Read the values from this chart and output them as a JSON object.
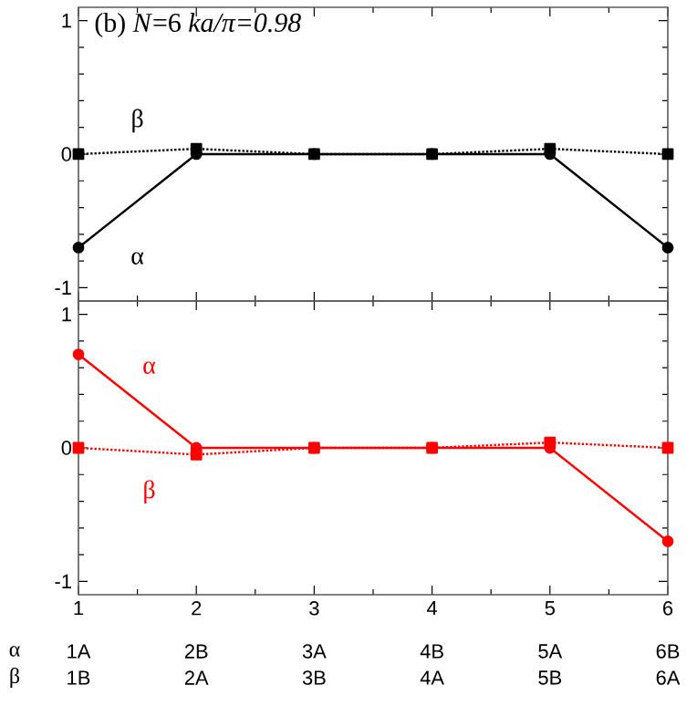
{
  "chart_data": [
    {
      "type": "line",
      "title": "(b) *N*=6    *ka/π=0.98*",
      "x": [
        1,
        2,
        3,
        4,
        5,
        6
      ],
      "xlim": [
        1,
        6
      ],
      "xticks": [
        1,
        2,
        3,
        4,
        5,
        6
      ],
      "ylim": [
        -1.1,
        1.1
      ],
      "yticks": [
        -1,
        0,
        1
      ],
      "tick_labels": "y",
      "grid": false,
      "legend": false,
      "series": [
        {
          "name": "α",
          "color": "#000000",
          "marker": "circle",
          "line_style": "solid",
          "values": [
            -0.7,
            0,
            0,
            0,
            0,
            -0.7
          ]
        },
        {
          "name": "β",
          "color": "#000000",
          "marker": "square",
          "line_style": "dotted",
          "values": [
            0,
            0.04,
            0,
            0,
            0.04,
            0
          ]
        }
      ]
    },
    {
      "type": "line",
      "x": [
        1,
        2,
        3,
        4,
        5,
        6
      ],
      "xlim": [
        1,
        6
      ],
      "xticks": [
        1,
        2,
        3,
        4,
        5,
        6
      ],
      "ylim": [
        -1.1,
        1.1
      ],
      "yticks": [
        -1,
        0,
        1
      ],
      "grid": false,
      "legend": false,
      "series": [
        {
          "name": "α",
          "color": "#ff0000",
          "marker": "circle",
          "line_style": "solid",
          "values": [
            0.7,
            0,
            0,
            0,
            0,
            -0.7
          ]
        },
        {
          "name": "β",
          "color": "#ff0000",
          "marker": "square",
          "line_style": "dotted",
          "values": [
            0,
            -0.05,
            0,
            0,
            0.04,
            0
          ]
        }
      ],
      "annotations": [
        "α",
        "1A",
        "2B",
        "3A",
        "4B",
        "5A",
        "6B",
        "β",
        "1B",
        "2A",
        "3B",
        "4A",
        "5B",
        "6A"
      ]
    }
  ]
}
